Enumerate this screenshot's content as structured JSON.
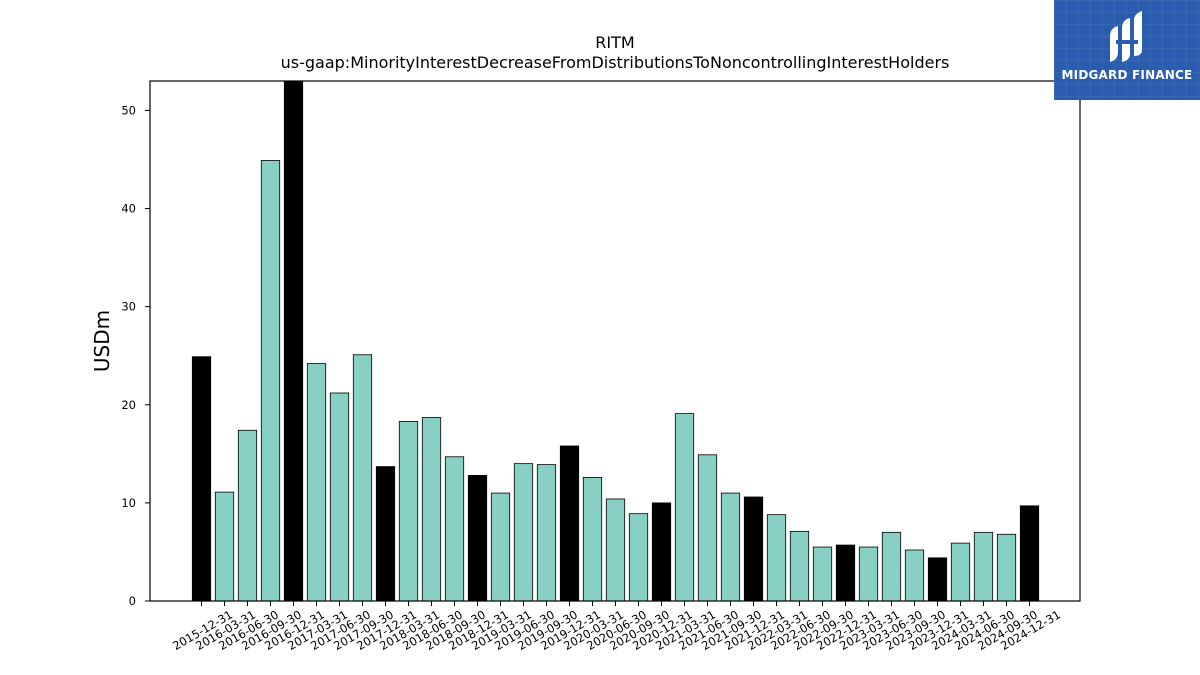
{
  "chart_data": {
    "type": "bar",
    "title": "RITM",
    "subtitle": "us-gaap:MinorityInterestDecreaseFromDistributionsToNoncontrollingInterestHolders",
    "ylabel": "USDm",
    "xlabel": "",
    "ylim": [
      0,
      53
    ],
    "yticks": [
      0,
      10,
      20,
      30,
      40,
      50
    ],
    "grid": false,
    "categories": [
      "2015-12-31",
      "2016-03-31",
      "2016-06-30",
      "2016-09-30",
      "2016-12-31",
      "2017-03-31",
      "2017-06-30",
      "2017-09-30",
      "2017-12-31",
      "2018-03-31",
      "2018-06-30",
      "2018-09-30",
      "2018-12-31",
      "2019-03-31",
      "2019-06-30",
      "2019-09-30",
      "2019-12-31",
      "2020-03-31",
      "2020-06-30",
      "2020-09-30",
      "2020-12-31",
      "2021-03-31",
      "2021-06-30",
      "2021-09-30",
      "2021-12-31",
      "2022-03-31",
      "2022-06-30",
      "2022-09-30",
      "2022-12-31",
      "2023-03-31",
      "2023-06-30",
      "2023-09-30",
      "2023-12-31",
      "2024-03-31",
      "2024-06-30",
      "2024-09-30",
      "2024-12-31"
    ],
    "values": [
      24.9,
      11.1,
      17.4,
      44.9,
      53.0,
      24.2,
      21.2,
      25.1,
      13.7,
      18.3,
      18.7,
      14.7,
      12.8,
      11.0,
      14.0,
      13.9,
      15.8,
      12.6,
      10.4,
      8.9,
      10.0,
      19.1,
      14.9,
      11.0,
      10.6,
      8.8,
      7.1,
      5.5,
      5.7,
      5.5,
      7.0,
      5.2,
      4.4,
      5.9,
      7.0,
      6.8,
      9.7
    ],
    "colors": {
      "quarter": "#88d0c4",
      "year_end": "#000000",
      "edge": "#000000"
    }
  },
  "logo": {
    "text": "MIDGARD FINANCE",
    "bg": "#2a5cb0"
  }
}
